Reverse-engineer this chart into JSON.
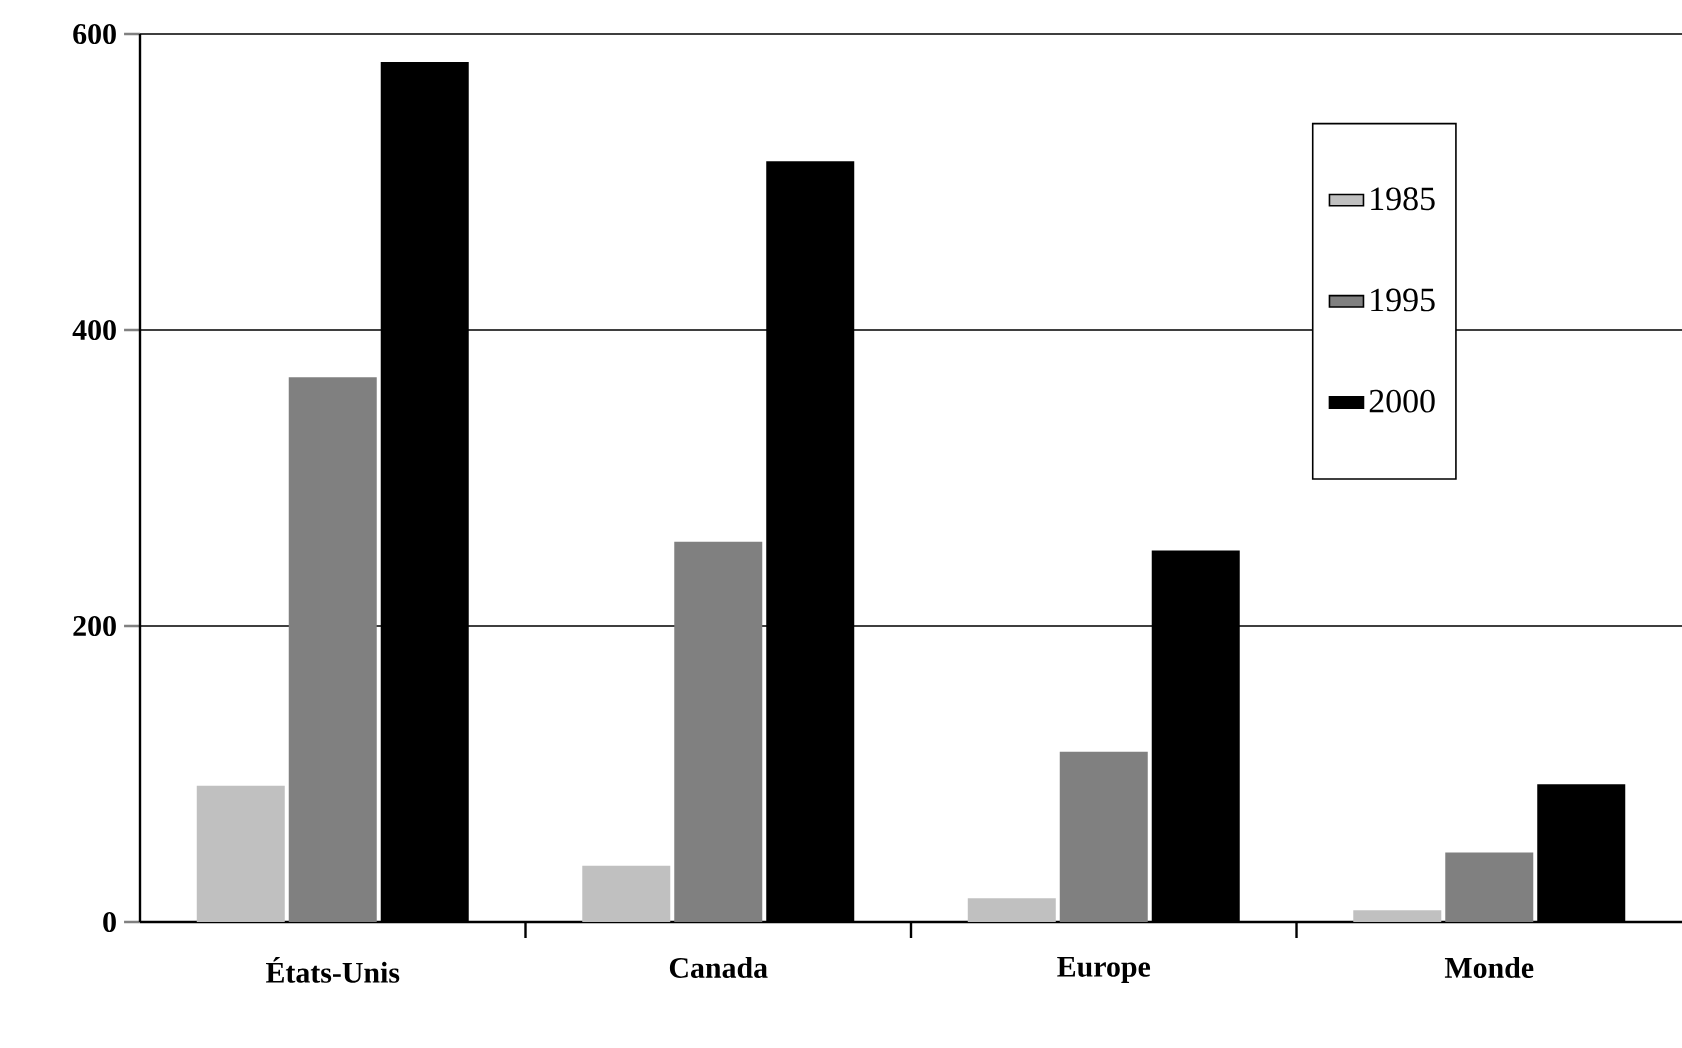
{
  "chart_data": {
    "type": "bar",
    "categories": [
      "États-Unis",
      "Canada",
      "Europe",
      "Monde"
    ],
    "series": [
      {
        "name": "1985",
        "color": "#c0c0c0",
        "values": [
          92,
          38,
          16,
          8
        ]
      },
      {
        "name": "1995",
        "color": "#808080",
        "values": [
          368,
          257,
          115,
          47
        ]
      },
      {
        "name": "2000",
        "color": "#000000",
        "values": [
          581,
          514,
          251,
          93
        ]
      }
    ],
    "ylim": [
      0,
      600
    ],
    "yticks": [
      0,
      200,
      400,
      600
    ],
    "grid": "y",
    "legend": "top right"
  }
}
